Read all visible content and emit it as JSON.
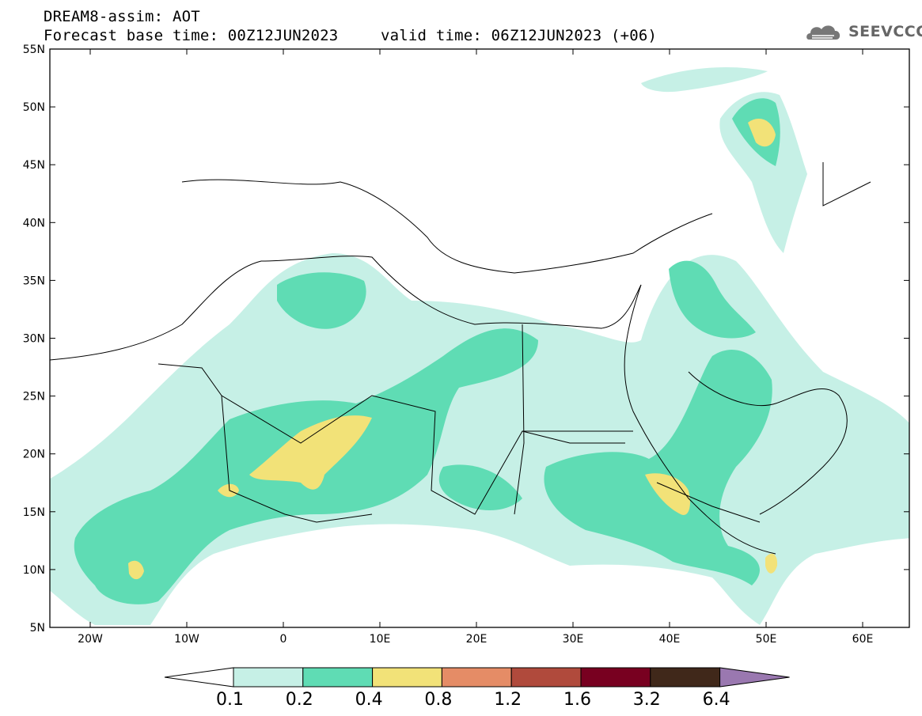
{
  "header": {
    "line1": "DREAM8-assim: AOT",
    "line2": "Forecast base time: 00Z12JUN2023",
    "line3": "valid time: 06Z12JUN2023 (+06)"
  },
  "logo": {
    "text": "SEEVCCC",
    "icon": "cloud-icon"
  },
  "map": {
    "lat_labels": [
      "55N",
      "50N",
      "45N",
      "40N",
      "35N",
      "30N",
      "25N",
      "20N",
      "15N",
      "10N",
      "5N"
    ],
    "lon_labels": [
      "20W",
      "10W",
      "0",
      "10E",
      "20E",
      "30E",
      "40E",
      "50E",
      "60E"
    ]
  },
  "colorbar": {
    "labels": [
      "0.1",
      "0.2",
      "0.4",
      "0.8",
      "1.2",
      "1.6",
      "3.2",
      "6.4"
    ],
    "colors": [
      "#c6f0e6",
      "#5fdcb4",
      "#f2e278",
      "#e58c66",
      "#b04a3c",
      "#780020",
      "#40281a",
      "#9a78b0"
    ]
  }
}
